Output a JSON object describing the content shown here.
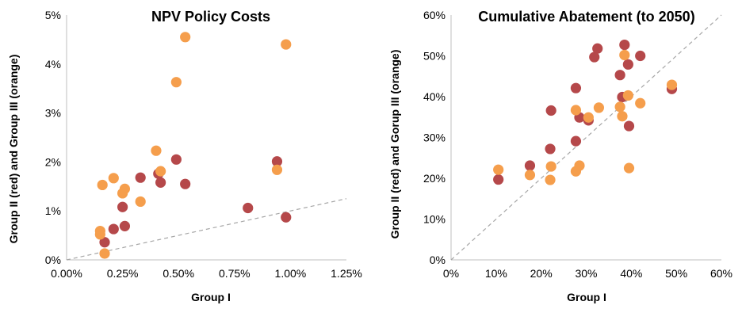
{
  "colors": {
    "red": "#b5484a",
    "orange": "#f59e4c",
    "reference_line": "#a6a6a6"
  },
  "chart_data": [
    {
      "type": "scatter",
      "title": "NPV Policy Costs",
      "xlabel": "Group I",
      "ylabel": "Group II (red) and Group III (orange)",
      "xlim": [
        0,
        0.0125
      ],
      "ylim": [
        0,
        0.05
      ],
      "x_ticks": [
        "0.00%",
        "0.25%",
        "0.50%",
        "0.75%",
        "1.00%",
        "1.25%"
      ],
      "y_ticks": [
        "0%",
        "1%",
        "2%",
        "3%",
        "4%",
        "5%"
      ],
      "grid": false,
      "reference_line": {
        "style": "dashed",
        "points": [
          [
            0,
            0
          ],
          [
            0.0125,
            0.0125
          ]
        ]
      },
      "series": [
        {
          "color": "red",
          "points": [
            [
              0.0017,
              0.0036
            ],
            [
              0.0021,
              0.0063
            ],
            [
              0.0025,
              0.0108
            ],
            [
              0.0026,
              0.0069
            ],
            [
              0.0033,
              0.0168
            ],
            [
              0.0041,
              0.0176
            ],
            [
              0.0042,
              0.0158
            ],
            [
              0.0049,
              0.0205
            ],
            [
              0.0053,
              0.0155
            ],
            [
              0.0081,
              0.0106
            ],
            [
              0.0094,
              0.0201
            ],
            [
              0.0098,
              0.0087
            ]
          ]
        },
        {
          "color": "orange",
          "points": [
            [
              0.0015,
              0.0052
            ],
            [
              0.0015,
              0.0059
            ],
            [
              0.0016,
              0.0153
            ],
            [
              0.0017,
              0.0013
            ],
            [
              0.0021,
              0.0167
            ],
            [
              0.0025,
              0.0136
            ],
            [
              0.0026,
              0.0145
            ],
            [
              0.0033,
              0.0119
            ],
            [
              0.004,
              0.0223
            ],
            [
              0.0042,
              0.0181
            ],
            [
              0.0049,
              0.0363
            ],
            [
              0.0053,
              0.0455
            ],
            [
              0.0094,
              0.0184
            ],
            [
              0.0098,
              0.044
            ]
          ]
        }
      ]
    },
    {
      "type": "scatter",
      "title": "Cumulative Abatement (to 2050)",
      "xlabel": "Group I",
      "ylabel": "Group II (red) and Gorup III (orange)",
      "xlim": [
        0,
        0.6
      ],
      "ylim": [
        0,
        0.6
      ],
      "x_ticks": [
        "0%",
        "10%",
        "20%",
        "30%",
        "40%",
        "50%",
        "60%"
      ],
      "y_ticks": [
        "0%",
        "10%",
        "20%",
        "30%",
        "40%",
        "50%",
        "60%"
      ],
      "grid": false,
      "reference_line": {
        "style": "dashed",
        "points": [
          [
            0,
            0
          ],
          [
            0.6,
            0.6
          ]
        ]
      },
      "series": [
        {
          "color": "red",
          "points": [
            [
              0.105,
              0.197
            ],
            [
              0.175,
              0.231
            ],
            [
              0.22,
              0.272
            ],
            [
              0.222,
              0.366
            ],
            [
              0.277,
              0.291
            ],
            [
              0.277,
              0.421
            ],
            [
              0.285,
              0.349
            ],
            [
              0.305,
              0.342
            ],
            [
              0.318,
              0.497
            ],
            [
              0.325,
              0.518
            ],
            [
              0.375,
              0.453
            ],
            [
              0.38,
              0.399
            ],
            [
              0.385,
              0.527
            ],
            [
              0.393,
              0.479
            ],
            [
              0.395,
              0.328
            ],
            [
              0.42,
              0.5
            ],
            [
              0.49,
              0.419
            ]
          ]
        },
        {
          "color": "orange",
          "points": [
            [
              0.105,
              0.221
            ],
            [
              0.175,
              0.208
            ],
            [
              0.22,
              0.196
            ],
            [
              0.222,
              0.229
            ],
            [
              0.277,
              0.217
            ],
            [
              0.277,
              0.367
            ],
            [
              0.285,
              0.231
            ],
            [
              0.305,
              0.349
            ],
            [
              0.328,
              0.373
            ],
            [
              0.375,
              0.375
            ],
            [
              0.38,
              0.352
            ],
            [
              0.385,
              0.502
            ],
            [
              0.393,
              0.403
            ],
            [
              0.395,
              0.225
            ],
            [
              0.42,
              0.384
            ],
            [
              0.49,
              0.429
            ]
          ]
        }
      ]
    }
  ]
}
